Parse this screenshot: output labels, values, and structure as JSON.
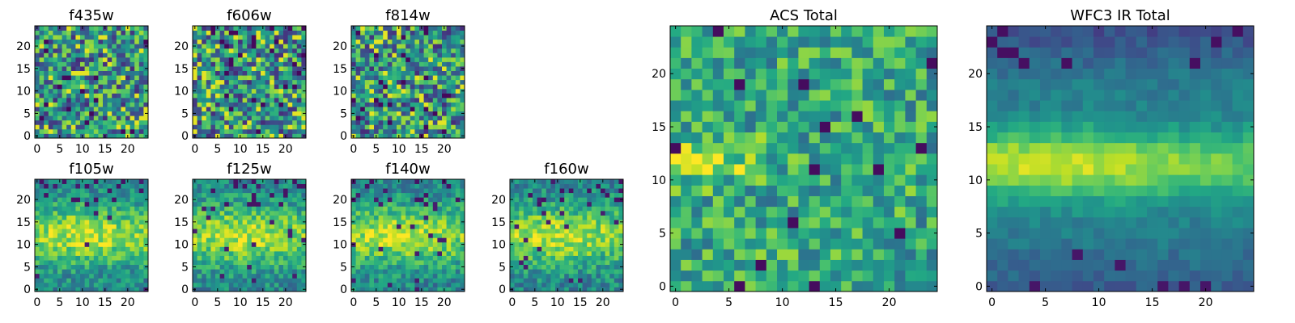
{
  "chart_data": {
    "type": "heatmap",
    "colormap": "viridis",
    "value_range": [
      0,
      1
    ],
    "panels": [
      {
        "id": "f435w",
        "title": "f435w",
        "size": 25,
        "pattern": "noise",
        "seed": 11,
        "xticks": [
          "0",
          "5",
          "10",
          "15",
          "20"
        ],
        "yticks": [
          "0",
          "5",
          "10",
          "15",
          "20"
        ],
        "xlim": [
          -0.5,
          24.5
        ],
        "ylim": [
          -0.5,
          24.5
        ]
      },
      {
        "id": "f606w",
        "title": "f606w",
        "size": 25,
        "pattern": "noise",
        "seed": 23,
        "xticks": [
          "0",
          "5",
          "10",
          "15",
          "20"
        ],
        "yticks": [
          "0",
          "5",
          "10",
          "15",
          "20"
        ],
        "xlim": [
          -0.5,
          24.5
        ],
        "ylim": [
          -0.5,
          24.5
        ]
      },
      {
        "id": "f814w",
        "title": "f814w",
        "size": 25,
        "pattern": "noise",
        "seed": 37,
        "xticks": [
          "0",
          "5",
          "10",
          "15",
          "20"
        ],
        "yticks": [
          "0",
          "5",
          "10",
          "15",
          "20"
        ],
        "xlim": [
          -0.5,
          24.5
        ],
        "ylim": [
          -0.5,
          24.5
        ]
      },
      {
        "id": "f105w",
        "title": "f105w",
        "size": 25,
        "pattern": "galaxy",
        "seed": 41,
        "xticks": [
          "0",
          "5",
          "10",
          "15",
          "20"
        ],
        "yticks": [
          "0",
          "5",
          "10",
          "15",
          "20"
        ],
        "xlim": [
          -0.5,
          24.5
        ],
        "ylim": [
          -0.5,
          24.5
        ]
      },
      {
        "id": "f125w",
        "title": "f125w",
        "size": 25,
        "pattern": "galaxy",
        "seed": 53,
        "xticks": [
          "0",
          "5",
          "10",
          "15",
          "20"
        ],
        "yticks": [
          "0",
          "5",
          "10",
          "15",
          "20"
        ],
        "xlim": [
          -0.5,
          24.5
        ],
        "ylim": [
          -0.5,
          24.5
        ]
      },
      {
        "id": "f140w",
        "title": "f140w",
        "size": 25,
        "pattern": "galaxy",
        "seed": 67,
        "xticks": [
          "0",
          "5",
          "10",
          "15",
          "20"
        ],
        "yticks": [
          "0",
          "5",
          "10",
          "15",
          "20"
        ],
        "xlim": [
          -0.5,
          24.5
        ],
        "ylim": [
          -0.5,
          24.5
        ]
      },
      {
        "id": "f160w",
        "title": "f160w",
        "size": 25,
        "pattern": "galaxy",
        "seed": 79,
        "xticks": [
          "0",
          "5",
          "10",
          "15",
          "20"
        ],
        "yticks": [
          "0",
          "5",
          "10",
          "15",
          "20"
        ],
        "xlim": [
          -0.5,
          24.5
        ],
        "ylim": [
          -0.5,
          24.5
        ]
      },
      {
        "id": "acs-total",
        "title": "ACS Total",
        "size": 25,
        "pattern": "noise-wide",
        "seed": 97,
        "xticks": [
          "0",
          "5",
          "10",
          "15",
          "20"
        ],
        "yticks": [
          "0",
          "5",
          "10",
          "15",
          "20"
        ],
        "xlim": [
          -0.5,
          24.5
        ],
        "ylim": [
          -0.5,
          24.5
        ]
      },
      {
        "id": "wfc3-ir-total",
        "title": "WFC3 IR Total",
        "size": 25,
        "pattern": "galaxy-smooth",
        "seed": 101,
        "xticks": [
          "0",
          "5",
          "10",
          "15",
          "20"
        ],
        "yticks": [
          "0",
          "5",
          "10",
          "15",
          "20"
        ],
        "xlim": [
          -0.5,
          24.5
        ],
        "ylim": [
          -0.5,
          24.5
        ]
      }
    ]
  }
}
